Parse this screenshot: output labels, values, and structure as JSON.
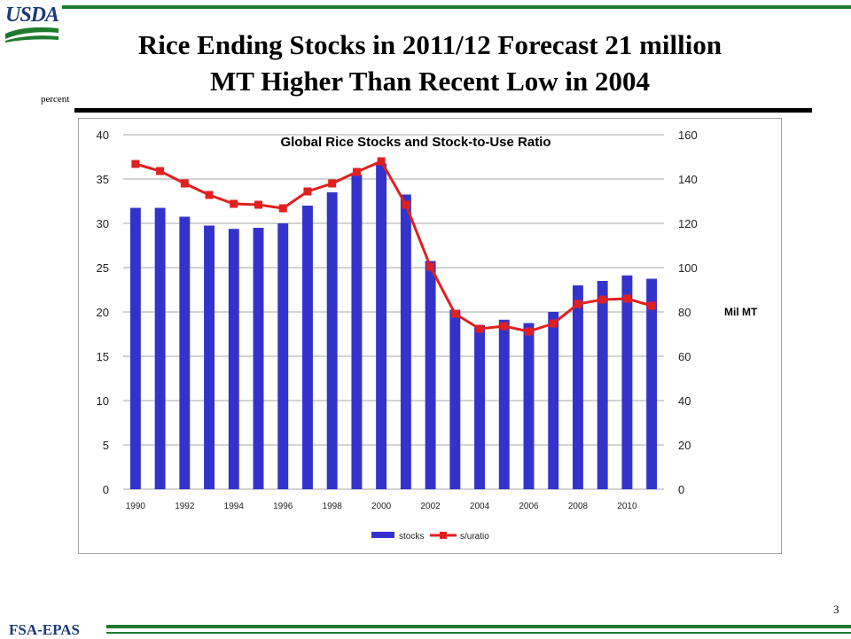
{
  "header": {
    "logo_text": "USDA",
    "title_line1": "Rice Ending Stocks in 2011/12 Forecast 21 million",
    "title_line2": "MT  Higher Than Recent Low in 2004",
    "left_axis_unit": "percent"
  },
  "footer": {
    "label": "FSA-EPAS",
    "page_number": "3"
  },
  "colors": {
    "brand_green": "#1e7a2e",
    "brand_blue": "#1a3a7a",
    "stocks_bar": "#3333cc",
    "ratio_line": "#e02020"
  },
  "chart_data": {
    "type": "bar",
    "title": "Global Rice Stocks and Stock-to-Use  Ratio",
    "categories": [
      "1990",
      "1991",
      "1992",
      "1993",
      "1994",
      "1995",
      "1996",
      "1997",
      "1998",
      "1999",
      "2000",
      "2001",
      "2002",
      "2003",
      "2004",
      "2005",
      "2006",
      "2007",
      "2008",
      "2009",
      "2010",
      "2011"
    ],
    "x_tick_labels": [
      "1990",
      "1992",
      "1994",
      "1996",
      "1998",
      "2000",
      "2002",
      "2004",
      "2006",
      "2008",
      "2010"
    ],
    "left_axis": {
      "ylim": [
        0,
        40
      ],
      "ticks": [
        0,
        5,
        10,
        15,
        20,
        25,
        30,
        35,
        40
      ]
    },
    "right_axis": {
      "ylim": [
        0,
        160
      ],
      "ticks": [
        0,
        20,
        40,
        60,
        80,
        100,
        120,
        140,
        160
      ],
      "label": "Mil MT"
    },
    "grid": true,
    "legend_position": "bottom",
    "series": [
      {
        "name": "stocks",
        "type": "bar",
        "axis": "right",
        "values": [
          127,
          127,
          123,
          119,
          117.5,
          118,
          120,
          128,
          134,
          142,
          147,
          133,
          103,
          81,
          74,
          76.5,
          75,
          80,
          92,
          94,
          96.5,
          95
        ]
      },
      {
        "name": "s/uratio",
        "type": "line",
        "axis": "left",
        "values": [
          36.7,
          35.9,
          34.5,
          33.2,
          32.2,
          32.1,
          31.7,
          33.6,
          34.5,
          35.8,
          37.0,
          32.1,
          25.1,
          19.8,
          18.1,
          18.4,
          17.8,
          18.7,
          20.9,
          21.4,
          21.5,
          20.7
        ]
      }
    ]
  }
}
